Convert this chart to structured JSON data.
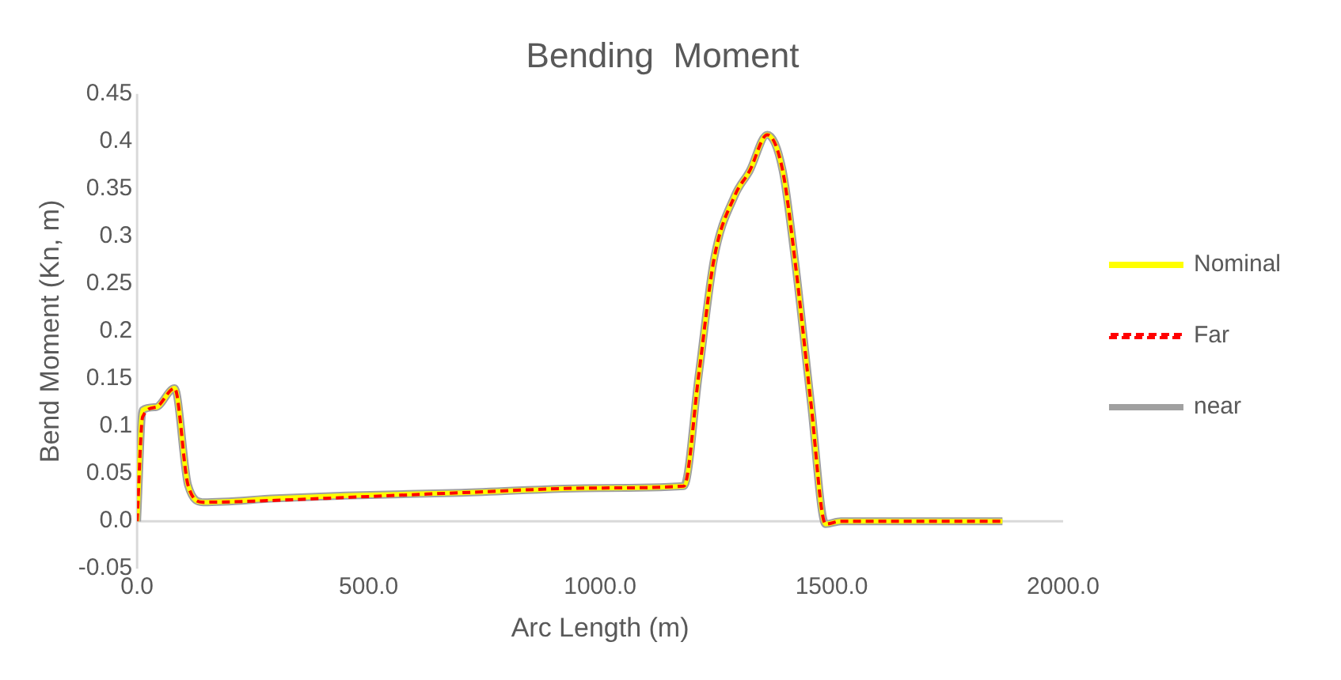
{
  "chart_data": {
    "type": "line",
    "title": "Bending  Moment",
    "xlabel": "Arc Length (m)",
    "ylabel": "Bend Moment (Kn, m)",
    "xlim": [
      0,
      2000
    ],
    "xticks": [
      {
        "value": 0,
        "label": "0.0"
      },
      {
        "value": 500,
        "label": "500.0"
      },
      {
        "value": 1000,
        "label": "1000.0"
      },
      {
        "value": 1500,
        "label": "1500.0"
      },
      {
        "value": 2000,
        "label": "2000.0"
      }
    ],
    "ylim": [
      -0.05,
      0.45
    ],
    "yticks": [
      -0.05,
      {
        "value": 0,
        "label": "0.0"
      },
      0.05,
      0.1,
      0.15,
      0.2,
      0.25,
      0.3,
      0.35,
      0.4,
      0.45
    ],
    "grid": false,
    "legend": "right",
    "marker": "none",
    "x": [
      0,
      12,
      40,
      81,
      110,
      143,
      300,
      450,
      700,
      1000,
      1181,
      1213,
      1246,
      1291,
      1323,
      1361,
      1394,
      1422,
      1455,
      1487,
      1520,
      1869
    ],
    "series": [
      {
        "name": "Nominal",
        "color": "#ffff00",
        "line_style": "solid",
        "values": [
          0,
          0.117,
          0.12,
          0.14,
          0.038,
          0.02,
          0.024,
          0.027,
          0.03,
          0.035,
          0.037,
          0.154,
          0.276,
          0.343,
          0.369,
          0.407,
          0.37,
          0.27,
          0.126,
          -0.003,
          0,
          0
        ]
      },
      {
        "name": "Far",
        "color": "#ff0000",
        "line_style": "dashed",
        "values": [
          0,
          0.11,
          0.12,
          0.14,
          0.038,
          0.02,
          0.022,
          0.025,
          0.03,
          0.035,
          0.037,
          0.154,
          0.276,
          0.343,
          0.369,
          0.407,
          0.37,
          0.27,
          0.126,
          -0.003,
          0,
          0
        ]
      },
      {
        "name": "near",
        "color": "#a0a0a0",
        "line_style": "solid",
        "values": [
          0,
          0.117,
          0.12,
          0.14,
          0.038,
          0.02,
          0.024,
          0.027,
          0.03,
          0.035,
          0.037,
          0.154,
          0.276,
          0.343,
          0.369,
          0.407,
          0.37,
          0.27,
          0.126,
          -0.003,
          0,
          0
        ]
      }
    ]
  }
}
